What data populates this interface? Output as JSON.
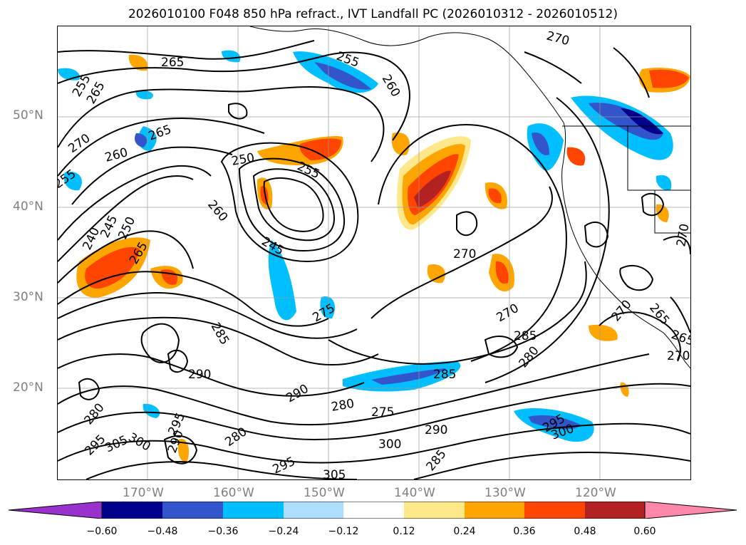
{
  "title": "2026010100 F048 850 hPa refract., IVT Landfall PC (2026010312 - 2026010512)",
  "lat_labels": [
    "50°N",
    "40°N",
    "30°N",
    "20°N"
  ],
  "lon_labels": [
    "170°W",
    "160°W",
    "150°W",
    "140°W",
    "130°W",
    "120°W"
  ],
  "colorbar": {
    "ticks": [
      "−0.60",
      "−0.48",
      "−0.36",
      "−0.24",
      "−0.12",
      "0.12",
      "0.24",
      "0.36",
      "0.48",
      "0.60"
    ],
    "colors": [
      "#9932CC",
      "#00008B",
      "#3355CC",
      "#00BFFF",
      "#ADE0FF",
      "#FFFFFF",
      "#FFE88A",
      "#FFA500",
      "#FF4500",
      "#B22222",
      "#FF88AA"
    ]
  },
  "contour_labels": [
    {
      "text": "265"
    },
    {
      "text": "255"
    },
    {
      "text": "260"
    },
    {
      "text": "270"
    },
    {
      "text": "255"
    },
    {
      "text": "265"
    },
    {
      "text": "270"
    },
    {
      "text": "260"
    },
    {
      "text": "265"
    },
    {
      "text": "255"
    },
    {
      "text": "250"
    },
    {
      "text": "255"
    },
    {
      "text": "260"
    },
    {
      "text": "245"
    },
    {
      "text": "240"
    },
    {
      "text": "245"
    },
    {
      "text": "250"
    },
    {
      "text": "265"
    },
    {
      "text": "270"
    },
    {
      "text": "275"
    },
    {
      "text": "270"
    },
    {
      "text": "285"
    },
    {
      "text": "285"
    },
    {
      "text": "290"
    },
    {
      "text": "285"
    },
    {
      "text": "290"
    },
    {
      "text": "280"
    },
    {
      "text": "280"
    },
    {
      "text": "275"
    },
    {
      "text": "290"
    },
    {
      "text": "280"
    },
    {
      "text": "295"
    },
    {
      "text": "300"
    },
    {
      "text": "295"
    },
    {
      "text": "305"
    },
    {
      "text": "290"
    },
    {
      "text": "280"
    },
    {
      "text": "300"
    },
    {
      "text": "295"
    },
    {
      "text": "305"
    },
    {
      "text": "290"
    },
    {
      "text": "285"
    },
    {
      "text": "295"
    },
    {
      "text": "300"
    },
    {
      "text": "270"
    },
    {
      "text": "265"
    },
    {
      "text": "265"
    },
    {
      "text": "270"
    },
    {
      "text": "270"
    }
  ]
}
